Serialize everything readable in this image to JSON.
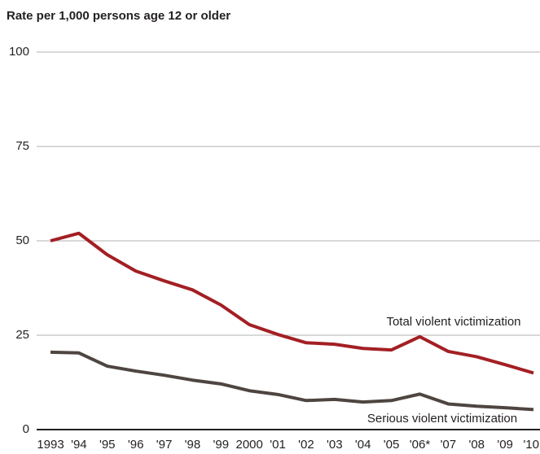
{
  "chart_data": {
    "type": "line",
    "title": "Rate per 1,000 persons age 12 or older",
    "categories": [
      "1993",
      "'94",
      "'95",
      "'96",
      "'97",
      "'98",
      "'99",
      "2000",
      "'01",
      "'02",
      "'03",
      "'04",
      "'05",
      "'06*",
      "'07",
      "'08",
      "'09",
      "'10"
    ],
    "series": [
      {
        "name": "Total violent victimization",
        "color": "#a31f24",
        "values": [
          50,
          52,
          46.3,
          42,
          39.4,
          37,
          33,
          27.8,
          25.2,
          23,
          22.6,
          21.5,
          21.1,
          24.6,
          20.7,
          19.3,
          17.2,
          15
        ]
      },
      {
        "name": "Serious violent victimization",
        "color": "#4e4541",
        "values": [
          20.5,
          20.3,
          16.8,
          15.5,
          14.4,
          13.1,
          12.1,
          10.3,
          9.3,
          7.7,
          8,
          7.3,
          7.7,
          9.4,
          6.8,
          6.2,
          5.8,
          5.3
        ]
      }
    ],
    "ylim": [
      0,
      100
    ],
    "yticks": [
      0,
      25,
      50,
      75,
      100
    ],
    "grid": true
  }
}
